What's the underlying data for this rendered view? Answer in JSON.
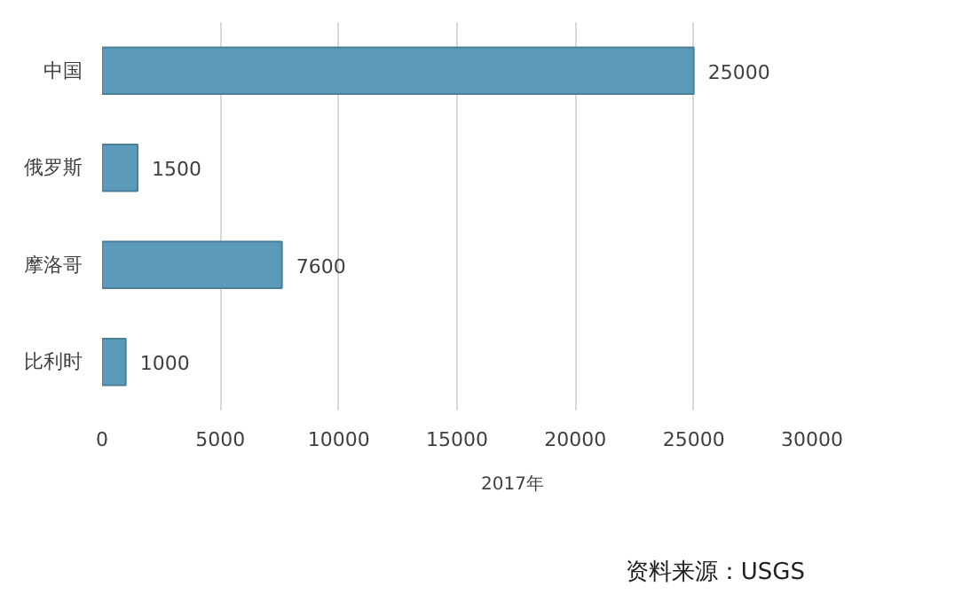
{
  "chart_data": {
    "type": "bar",
    "orientation": "horizontal",
    "categories": [
      "中国",
      "俄罗斯",
      "摩洛哥",
      "比利时"
    ],
    "series": [
      {
        "name": "2017年",
        "color": "#5b9ab8",
        "values": [
          25000,
          1500,
          7600,
          1000
        ]
      }
    ],
    "xlim": [
      0,
      30000
    ],
    "xticks": [
      0,
      5000,
      10000,
      15000,
      20000,
      25000,
      30000
    ],
    "grid": "x",
    "data_labels": true,
    "legend": "bottom",
    "annotations": [
      "资料来源：USGS"
    ]
  }
}
